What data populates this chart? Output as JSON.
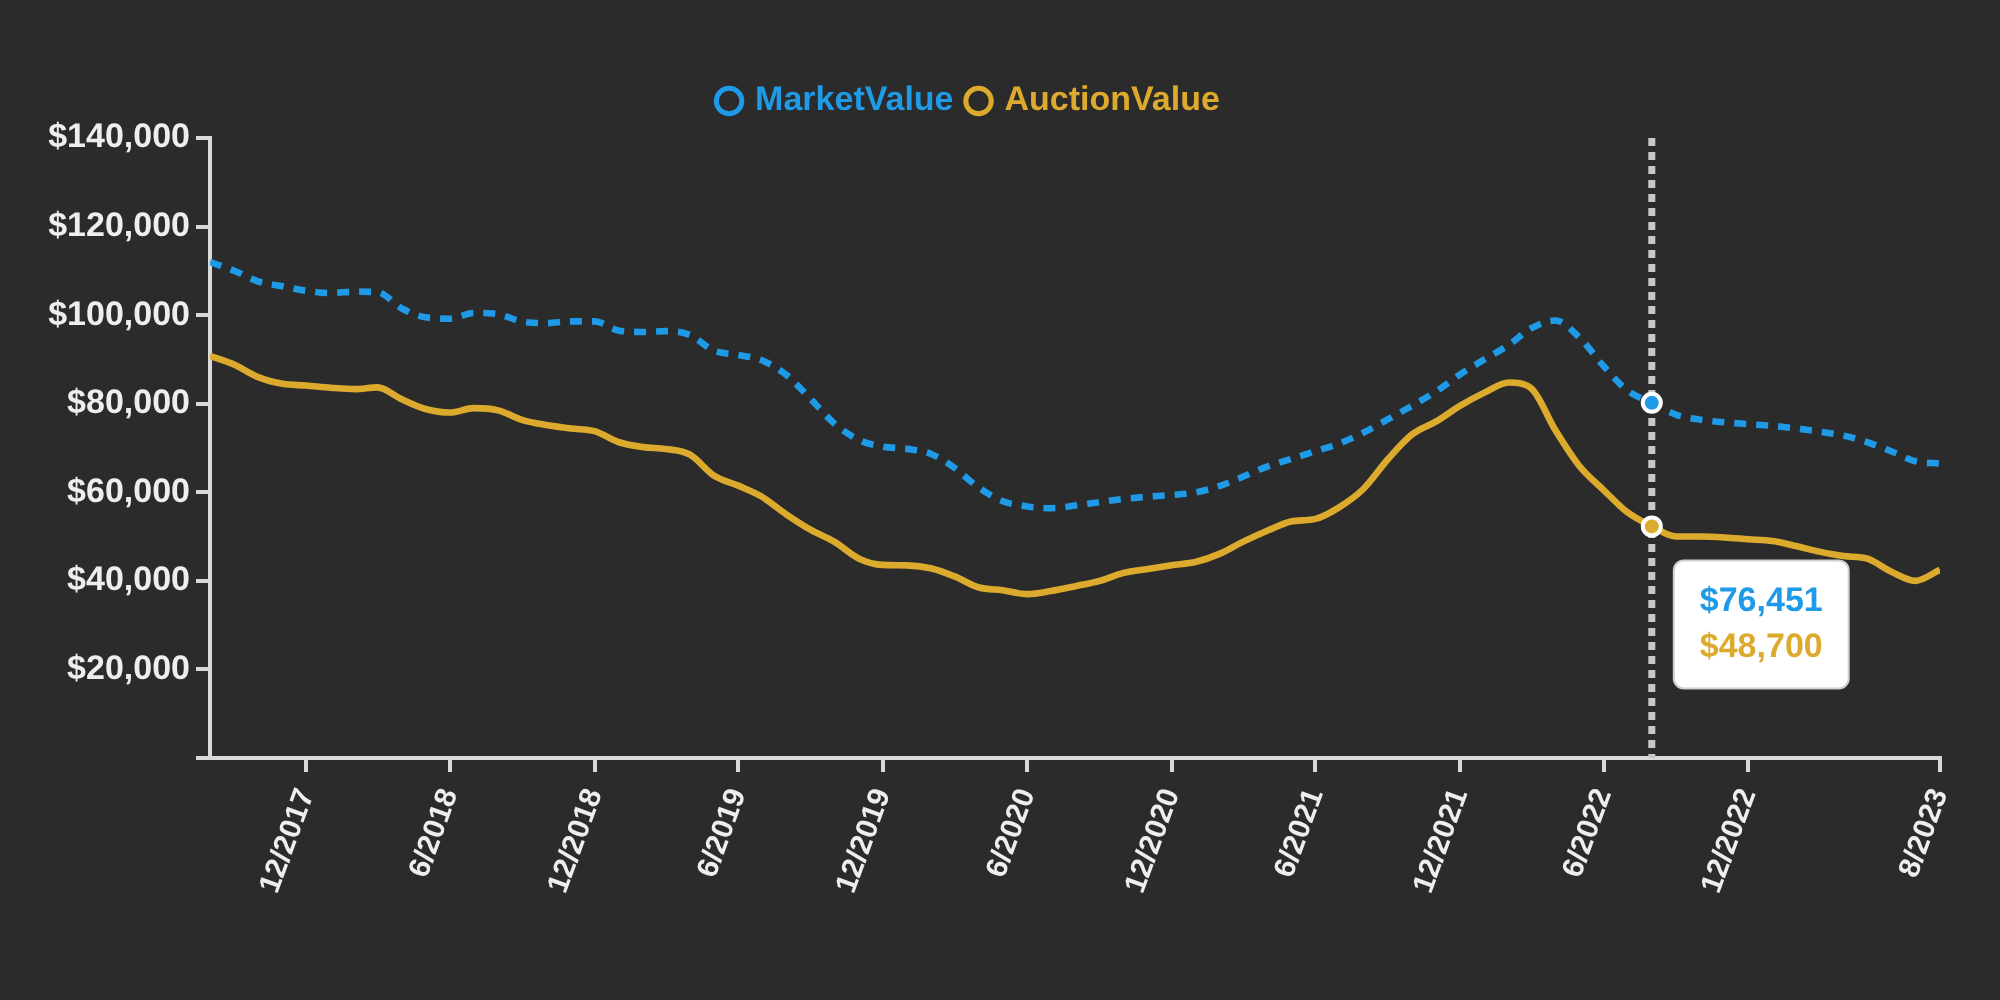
{
  "chart_data": {
    "type": "line",
    "x": [
      "2017-08",
      "2017-09",
      "2017-10",
      "2017-11",
      "2017-12",
      "2018-01",
      "2018-02",
      "2018-03",
      "2018-04",
      "2018-05",
      "2018-06",
      "2018-07",
      "2018-08",
      "2018-09",
      "2018-10",
      "2018-11",
      "2018-12",
      "2019-01",
      "2019-02",
      "2019-03",
      "2019-04",
      "2019-05",
      "2019-06",
      "2019-07",
      "2019-08",
      "2019-09",
      "2019-10",
      "2019-11",
      "2019-12",
      "2020-01",
      "2020-02",
      "2020-03",
      "2020-04",
      "2020-05",
      "2020-06",
      "2020-07",
      "2020-08",
      "2020-09",
      "2020-10",
      "2020-11",
      "2020-12",
      "2021-01",
      "2021-02",
      "2021-03",
      "2021-04",
      "2021-05",
      "2021-06",
      "2021-07",
      "2021-08",
      "2021-09",
      "2021-10",
      "2021-11",
      "2021-12",
      "2022-01",
      "2022-02",
      "2022-03",
      "2022-04",
      "2022-05",
      "2022-06",
      "2022-07",
      "2022-08",
      "2022-09",
      "2022-10",
      "2022-11",
      "2022-12",
      "2023-01",
      "2023-02",
      "2023-03",
      "2023-04",
      "2023-05",
      "2023-06",
      "2023-07",
      "2023-08"
    ],
    "series": [
      {
        "name": "MarketValue",
        "color": "#1e9ae6",
        "line_style": "dashed",
        "values": [
          112000,
          110000,
          107600,
          106500,
          105500,
          105000,
          105300,
          105200,
          101500,
          99500,
          99200,
          100500,
          100200,
          98500,
          98200,
          98600,
          98600,
          96500,
          96200,
          96400,
          95500,
          92000,
          91000,
          89800,
          86500,
          81000,
          75500,
          71800,
          70300,
          69800,
          68600,
          65500,
          61000,
          58000,
          56800,
          56400,
          57000,
          57800,
          58500,
          59000,
          59400,
          60000,
          61500,
          63500,
          65800,
          67500,
          69300,
          71000,
          73500,
          76500,
          79500,
          82800,
          86600,
          90000,
          93300,
          97000,
          98800,
          95000,
          88500,
          83000,
          80200,
          77500,
          76400,
          75800,
          75400,
          75000,
          74400,
          73700,
          72800,
          71300,
          69200,
          67000,
          66500
        ]
      },
      {
        "name": "AuctionValue",
        "color": "#dcaa2c",
        "line_style": "solid",
        "values": [
          90800,
          88800,
          86000,
          84500,
          84100,
          83600,
          83300,
          83700,
          81000,
          78800,
          78000,
          79000,
          78500,
          76300,
          75200,
          74400,
          73800,
          71300,
          70200,
          69800,
          68500,
          63800,
          61500,
          59000,
          55000,
          51500,
          48800,
          45000,
          43600,
          43500,
          42800,
          41000,
          38500,
          37900,
          37000,
          37700,
          38800,
          40000,
          41800,
          42700,
          43500,
          44300,
          46200,
          48800,
          51300,
          53400,
          54000,
          56600,
          60800,
          67500,
          73000,
          76000,
          79500,
          82500,
          84800,
          83500,
          74000,
          66000,
          60500,
          55500,
          52300,
          50000,
          50000,
          49800,
          49400,
          49000,
          47800,
          46600,
          45600,
          45000,
          42000,
          40000,
          42500
        ]
      }
    ],
    "xlim": [
      "2017-08",
      "2023-08"
    ],
    "xticks": [
      {
        "value": "2017-12",
        "label": "12/2017"
      },
      {
        "value": "2018-06",
        "label": "6/2018"
      },
      {
        "value": "2018-12",
        "label": "12/2018"
      },
      {
        "value": "2019-06",
        "label": "6/2019"
      },
      {
        "value": "2019-12",
        "label": "12/2019"
      },
      {
        "value": "2020-06",
        "label": "6/2020"
      },
      {
        "value": "2020-12",
        "label": "12/2020"
      },
      {
        "value": "2021-06",
        "label": "6/2021"
      },
      {
        "value": "2021-12",
        "label": "12/2021"
      },
      {
        "value": "2022-06",
        "label": "6/2022"
      },
      {
        "value": "2022-12",
        "label": "12/2022"
      },
      {
        "value": "2023-08",
        "label": "8/2023"
      }
    ],
    "ylim": [
      0,
      140000
    ],
    "yticks": [
      {
        "value": 0,
        "label": null
      },
      {
        "value": 20000,
        "label": "$20,000"
      },
      {
        "value": 40000,
        "label": "$40,000"
      },
      {
        "value": 60000,
        "label": "$60,000"
      },
      {
        "value": 80000,
        "label": "$80,000"
      },
      {
        "value": 100000,
        "label": "$100,000"
      },
      {
        "value": 120000,
        "label": "$120,000"
      },
      {
        "value": 140000,
        "label": "$140,000"
      }
    ],
    "legend": "top",
    "marker": "none",
    "ref_lines": [
      {
        "axis": "x",
        "value": "2022-08",
        "color": "#c8c8c8",
        "line_style": "dashed"
      }
    ],
    "annotations": [
      "$76,451",
      "$48,700"
    ]
  }
}
